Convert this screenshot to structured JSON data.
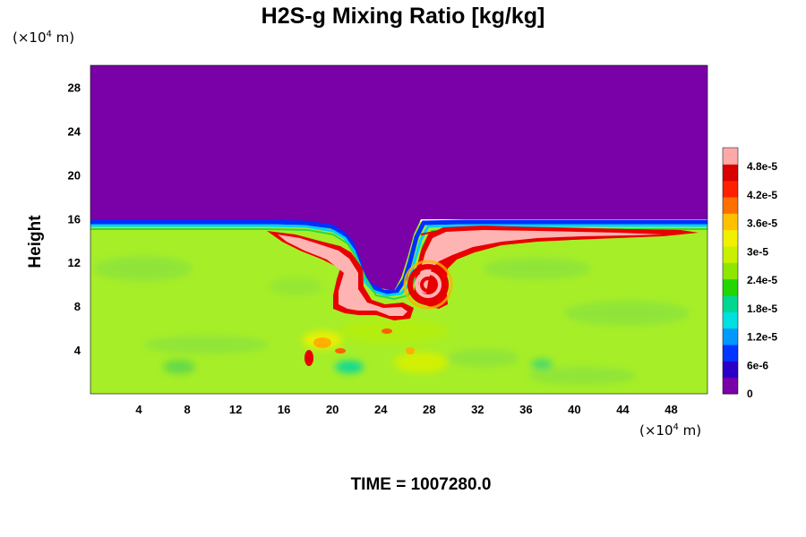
{
  "chart_data": {
    "type": "heatmap",
    "title": "H2S-g Mixing Ratio [kg/kg]",
    "ylabel": "Height",
    "x_unit_prefix": "(×10",
    "x_unit_exp": "4",
    "x_unit_suffix": " m)",
    "y_unit_prefix": "(×10",
    "y_unit_exp": "4",
    "y_unit_suffix": " m)",
    "xlim": [
      0,
      51
    ],
    "ylim": [
      0,
      30
    ],
    "x_ticks": [
      "4",
      "8",
      "12",
      "16",
      "20",
      "24",
      "28",
      "32",
      "36",
      "40",
      "44",
      "48"
    ],
    "y_ticks": [
      "4",
      "8",
      "12",
      "16",
      "20",
      "24",
      "28"
    ],
    "colorbar": {
      "range": [
        0,
        5.2e-05
      ],
      "labels": [
        "0",
        "6e-6",
        "1.2e-5",
        "1.8e-5",
        "2.4e-5",
        "3e-5",
        "3.6e-5",
        "4.2e-5",
        "4.8e-5"
      ],
      "colors": [
        "#7a00a8",
        "#2a00c8",
        "#0036ff",
        "#0098ff",
        "#00e0e0",
        "#00d890",
        "#22d600",
        "#8fe600",
        "#c8f000",
        "#f0f000",
        "#ffc000",
        "#ff7000",
        "#ff2000",
        "#d80000",
        "#ffa8a8"
      ]
    },
    "upper_layer_value": 0,
    "lower_layer_value_approx": 3.2e-05,
    "layer_top_height": 15.5,
    "time_label": "TIME = 1007280.0"
  },
  "colors": {
    "purple": "#7a00a8",
    "yellow_green": "#a6ee28",
    "green": "#86e43a",
    "blue": "#0020ff",
    "cyan": "#00c8ff",
    "red": "#e80000",
    "pink": "#ffb4b4",
    "orange": "#ffb000"
  }
}
